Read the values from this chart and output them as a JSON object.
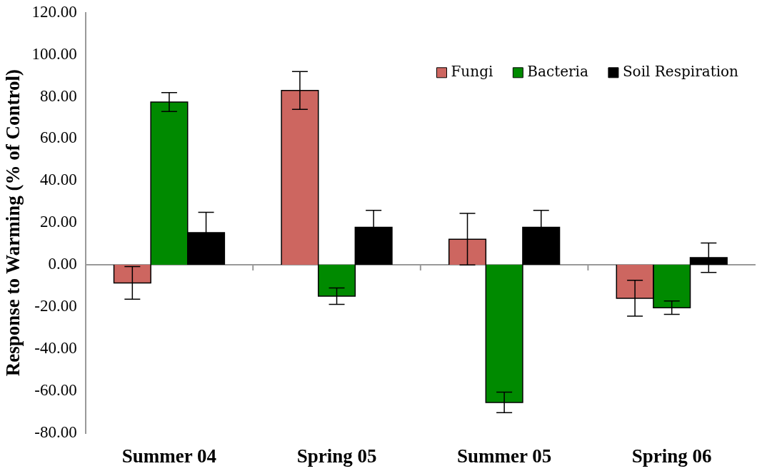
{
  "chart_data": {
    "type": "bar",
    "ylabel": "Response to Warming (% of Control)",
    "categories": [
      "Summer 04",
      "Spring 05",
      "Summer 05",
      "Spring 06"
    ],
    "series": [
      {
        "name": "Fungi",
        "color": "#cd6660",
        "values": [
          -8.6,
          83,
          12.2,
          -15.9
        ],
        "errors": [
          7.8,
          9,
          12.3,
          8.5
        ]
      },
      {
        "name": "Bacteria",
        "color": "#008a00",
        "values": [
          77.5,
          -14.9,
          -65.5,
          -20.4
        ],
        "errors": [
          4.5,
          3.9,
          4.9,
          3.2
        ]
      },
      {
        "name": "Soil Respiration",
        "color": "#000000",
        "values": [
          15.3,
          17.9,
          17.9,
          3.4
        ],
        "errors": [
          9.7,
          8,
          8,
          7
        ]
      }
    ],
    "ylim": [
      -80,
      120
    ],
    "yticks": [
      {
        "value": -80,
        "label": "-80.00"
      },
      {
        "value": -60,
        "label": "-60.00"
      },
      {
        "value": -40,
        "label": "-40.00"
      },
      {
        "value": -20,
        "label": "-20.00"
      },
      {
        "value": 0,
        "label": "0.00"
      },
      {
        "value": 20,
        "label": "20.00"
      },
      {
        "value": 40,
        "label": "40.00"
      },
      {
        "value": 60,
        "label": "60.00"
      },
      {
        "value": 80,
        "label": "80.00"
      },
      {
        "value": 100,
        "label": "100.00"
      },
      {
        "value": 120,
        "label": "120.00"
      }
    ],
    "legend": "top right"
  }
}
